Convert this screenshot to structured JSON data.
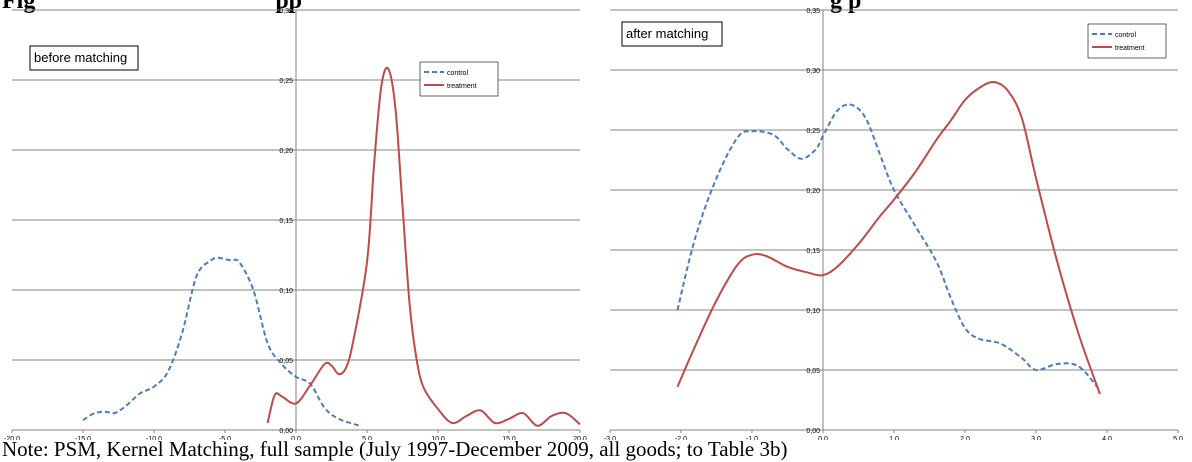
{
  "figure": {
    "heading_left": "Fig",
    "heading_left_tail": "pp",
    "heading_right": "g  p",
    "note": "Note: PSM, Kernel Matching, full sample (July 1997-December 2009, all goods; to Table 3b)"
  },
  "colors": {
    "control": "#4a7ebb",
    "treatment": "#be4b48",
    "grid": "#868686",
    "axis": "#868686"
  },
  "chart_data": [
    {
      "type": "line",
      "annotation": "before matching",
      "xlim": [
        -20,
        20
      ],
      "ylim": [
        0,
        0.3
      ],
      "xticks": [
        "-20,0",
        "-15,0",
        "-10,0",
        "-5,0",
        "0,0",
        "5,0",
        "10,0",
        "15,0",
        "20,0"
      ],
      "yticks": [
        "0,00",
        "0,05",
        "0,10",
        "0,15",
        "0,20",
        "0,25",
        "0,30"
      ],
      "legend": [
        "control",
        "treatment"
      ],
      "legend_position": "top-right",
      "series": [
        {
          "name": "control",
          "style": "dashed",
          "x": [
            -15.0,
            -14.2,
            -13.4,
            -12.8,
            -12.0,
            -11.0,
            -10.0,
            -9.0,
            -8.0,
            -7.0,
            -6.0,
            -5.5,
            -5.0,
            -4.5,
            -4.0,
            -3.0,
            -2.0,
            -1.0,
            0.0,
            1.0,
            2.0,
            3.0,
            4.5
          ],
          "y": [
            0.007,
            0.012,
            0.013,
            0.012,
            0.017,
            0.026,
            0.031,
            0.042,
            0.07,
            0.11,
            0.121,
            0.123,
            0.122,
            0.121,
            0.12,
            0.1,
            0.062,
            0.047,
            0.038,
            0.033,
            0.016,
            0.008,
            0.003
          ]
        },
        {
          "name": "treatment",
          "style": "solid",
          "x": [
            -2.0,
            -1.5,
            -1.0,
            0.0,
            1.0,
            2.0,
            2.5,
            3.0,
            3.5,
            4.0,
            5.0,
            5.5,
            6.0,
            6.5,
            7.0,
            7.5,
            8.0,
            8.5,
            9.0,
            10.0,
            11.0,
            12.0,
            13.0,
            14.0,
            15.0,
            16.0,
            17.0,
            18.0,
            19.0,
            20.0
          ],
          "y": [
            0.005,
            0.025,
            0.024,
            0.019,
            0.032,
            0.047,
            0.046,
            0.04,
            0.044,
            0.062,
            0.12,
            0.19,
            0.245,
            0.258,
            0.23,
            0.16,
            0.09,
            0.05,
            0.03,
            0.015,
            0.005,
            0.01,
            0.014,
            0.005,
            0.008,
            0.012,
            0.003,
            0.01,
            0.012,
            0.004
          ]
        }
      ]
    },
    {
      "type": "line",
      "annotation": "after matching",
      "xlim": [
        -3,
        5
      ],
      "ylim": [
        0,
        0.35
      ],
      "xticks": [
        "-3,0",
        "-2,0",
        "-1,0",
        "0,0",
        "1,0",
        "2,0",
        "3,0",
        "4,0",
        "5,0"
      ],
      "yticks": [
        "0,00",
        "0,05",
        "0,10",
        "0,15",
        "0,20",
        "0,25",
        "0,30",
        "0,35"
      ],
      "legend": [
        "control",
        "treatment"
      ],
      "legend_position": "top-right",
      "series": [
        {
          "name": "control",
          "style": "dashed",
          "x": [
            -2.05,
            -1.8,
            -1.5,
            -1.2,
            -1.0,
            -0.7,
            -0.5,
            -0.3,
            -0.1,
            0.0,
            0.2,
            0.4,
            0.6,
            0.8,
            1.0,
            1.3,
            1.6,
            1.8,
            2.0,
            2.2,
            2.5,
            2.8,
            3.0,
            3.3,
            3.6,
            3.9
          ],
          "y": [
            0.1,
            0.16,
            0.21,
            0.244,
            0.249,
            0.246,
            0.234,
            0.226,
            0.234,
            0.245,
            0.266,
            0.271,
            0.26,
            0.23,
            0.2,
            0.17,
            0.14,
            0.11,
            0.085,
            0.076,
            0.072,
            0.06,
            0.05,
            0.055,
            0.053,
            0.033
          ]
        },
        {
          "name": "treatment",
          "style": "solid",
          "x": [
            -2.05,
            -1.8,
            -1.5,
            -1.2,
            -1.0,
            -0.8,
            -0.5,
            -0.2,
            0.0,
            0.2,
            0.5,
            0.8,
            1.0,
            1.3,
            1.6,
            1.8,
            2.0,
            2.2,
            2.4,
            2.6,
            2.8,
            3.0,
            3.3,
            3.6,
            3.9
          ],
          "y": [
            0.036,
            0.07,
            0.108,
            0.138,
            0.146,
            0.145,
            0.136,
            0.131,
            0.129,
            0.136,
            0.155,
            0.178,
            0.192,
            0.215,
            0.242,
            0.258,
            0.275,
            0.285,
            0.29,
            0.283,
            0.26,
            0.21,
            0.14,
            0.08,
            0.03
          ]
        }
      ]
    }
  ]
}
